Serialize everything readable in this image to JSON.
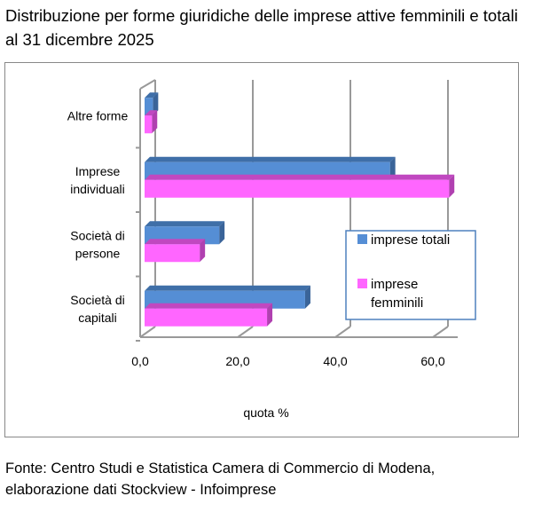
{
  "title": "Distribuzione per forme giuridiche delle imprese attive femminili e totali al 31 dicembre 2025",
  "source": [
    "Fonte: Centro Studi e Statistica Camera di Commercio di Modena,",
    "elaborazione dati Stockview - Infoimprese"
  ],
  "colors": {
    "totali": "#558ED5",
    "femminili": "#FF66FF"
  },
  "chart_data": {
    "type": "bar",
    "orientation": "horizontal",
    "title": "Distribuzione per forme giuridiche delle imprese attive femminili e totali al 31 dicembre 2025",
    "categories": [
      [
        "Altre forme"
      ],
      [
        "Imprese",
        "individuali"
      ],
      [
        "Società di",
        "persone"
      ],
      [
        "Società di",
        "capitali"
      ]
    ],
    "series": [
      {
        "name": "imprese totali",
        "values": [
          1.7,
          50.3,
          15.3,
          32.9
        ]
      },
      {
        "name": "imprese femminili",
        "values": [
          1.5,
          62.4,
          11.3,
          25.1
        ]
      }
    ],
    "legend": [
      [
        "imprese totali"
      ],
      [
        "imprese",
        "femminili"
      ]
    ],
    "legend_position": "right",
    "xlabel": "quota %",
    "xlim": [
      0,
      60
    ],
    "xticks": [
      "0,0",
      "20,0",
      "40,0",
      "60,0"
    ],
    "grid": true
  }
}
